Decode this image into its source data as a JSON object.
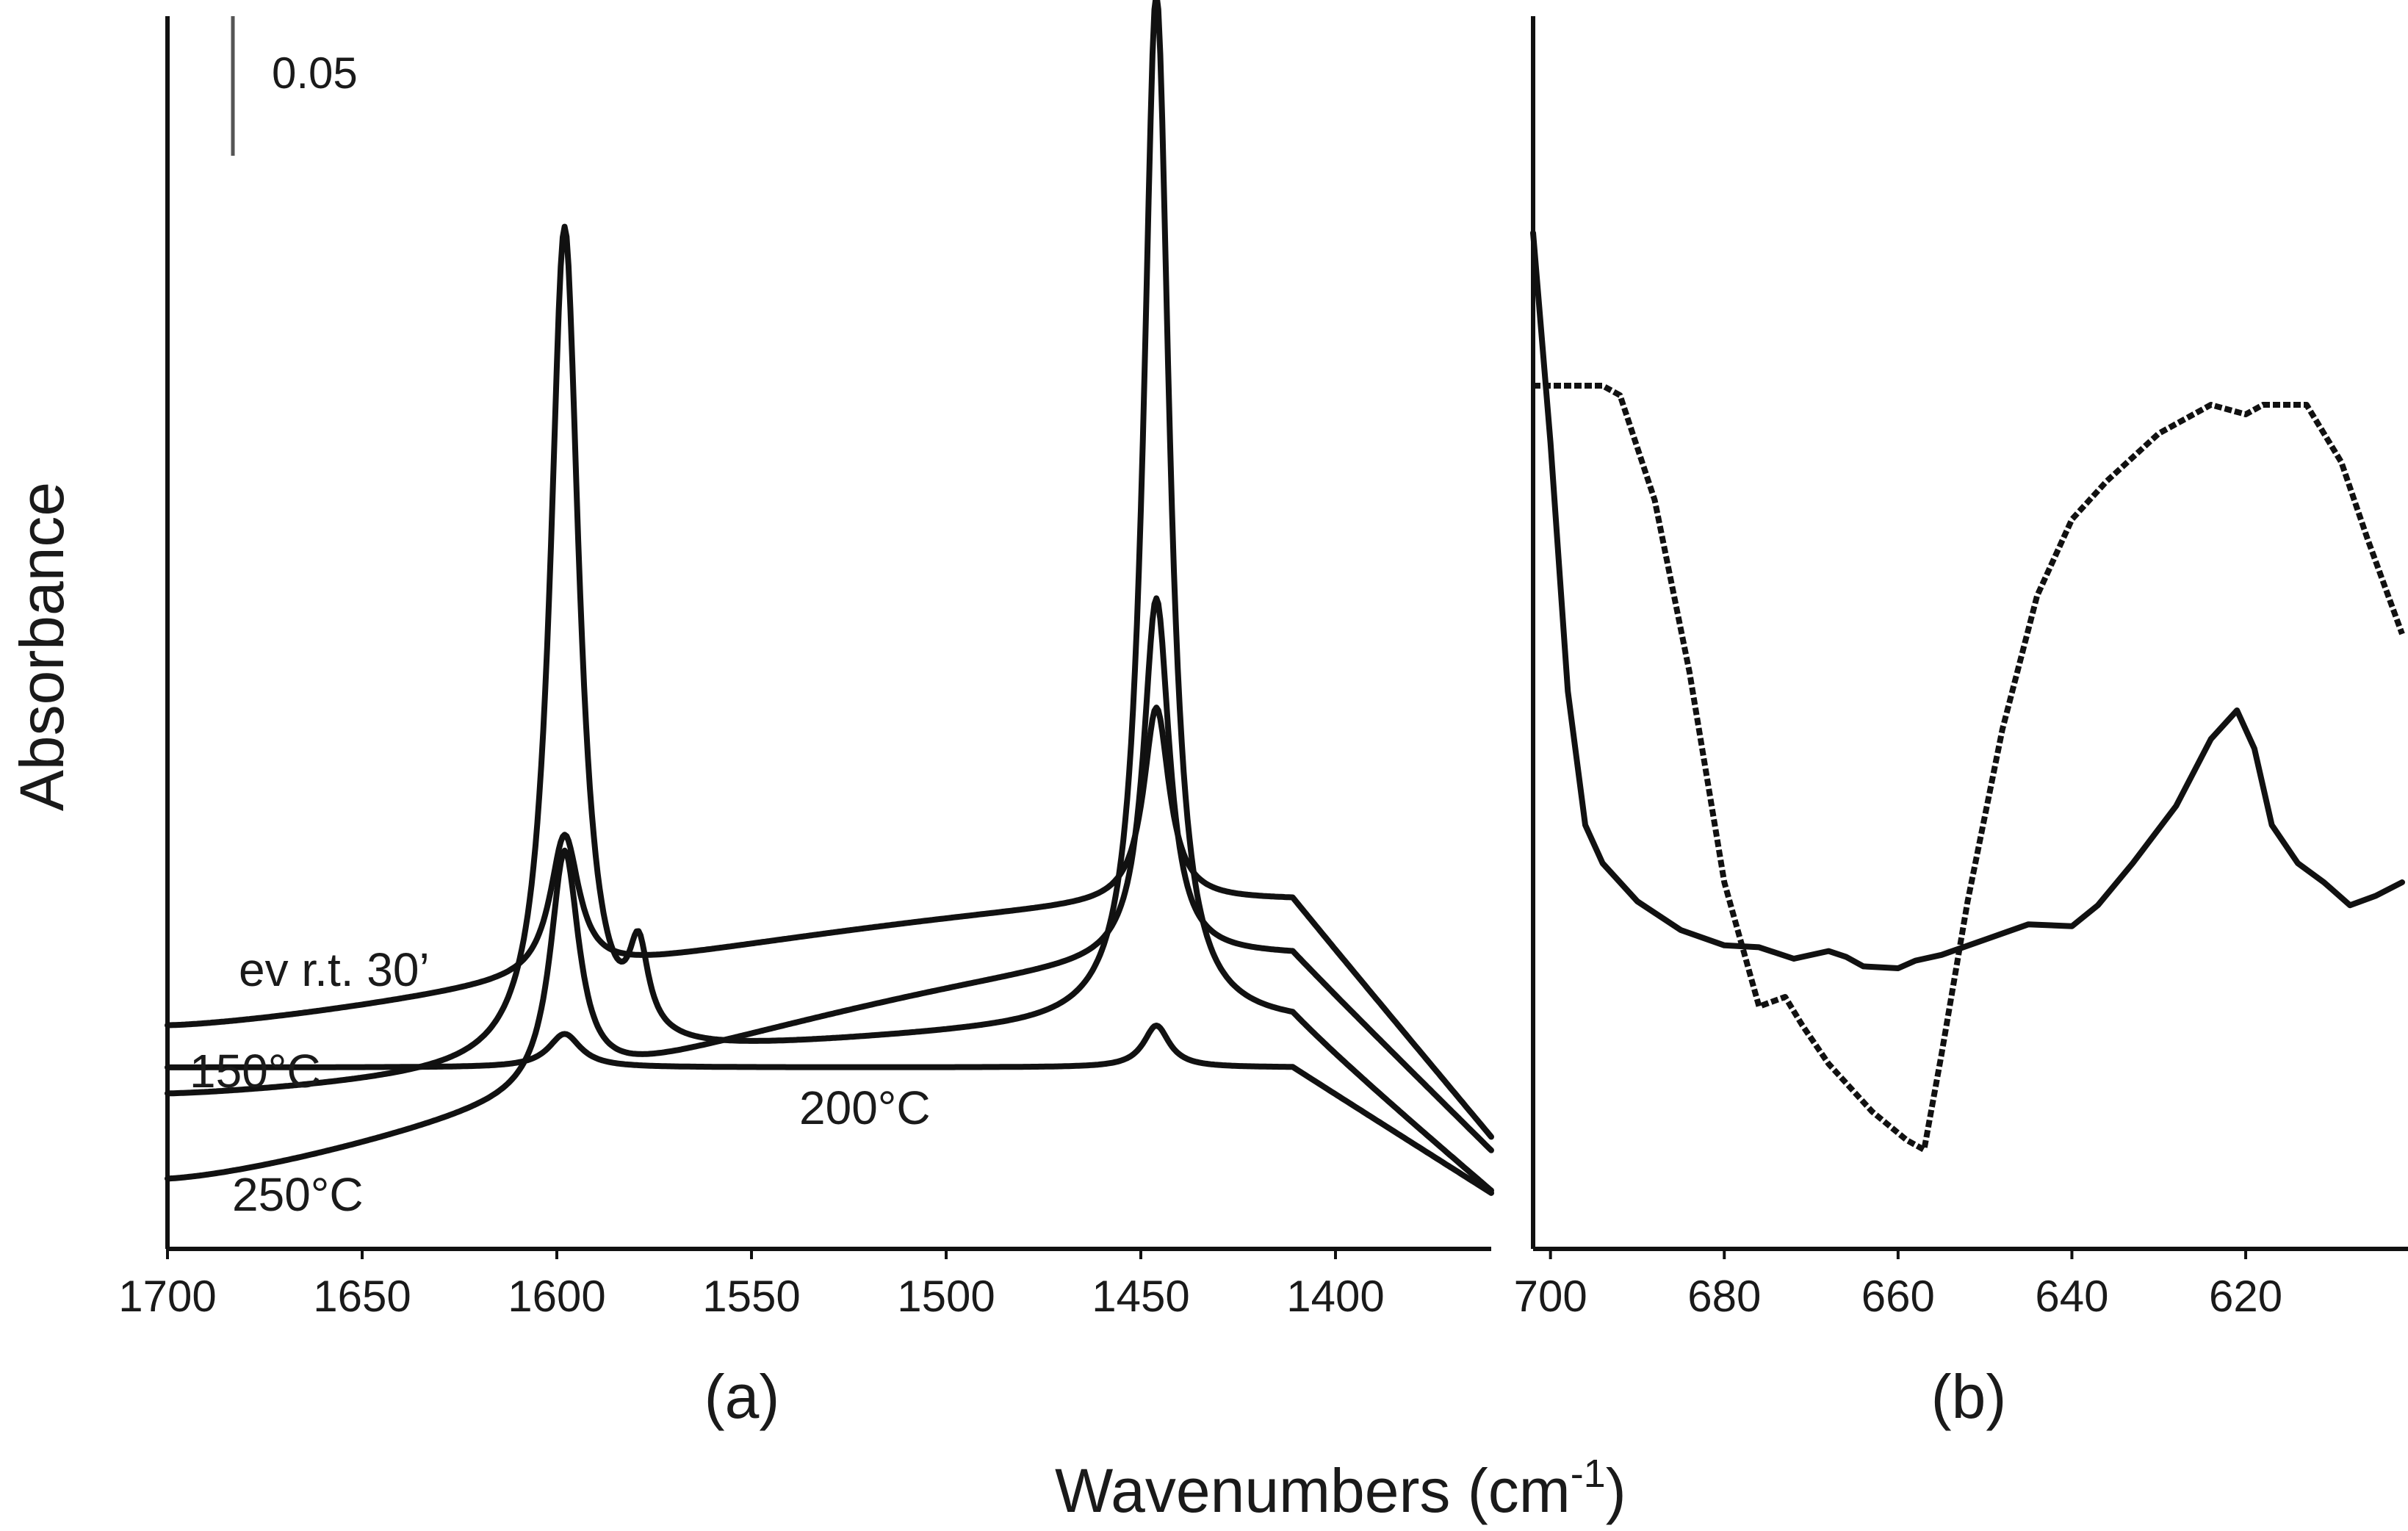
{
  "chart_data": [
    {
      "panel": "(a)",
      "type": "line",
      "xlim": [
        1700,
        1360
      ],
      "xticks": [
        1700,
        1650,
        1600,
        1550,
        1500,
        1450,
        1400
      ],
      "scale_bar": {
        "value": 0.05,
        "label": "0.05"
      },
      "series": [
        {
          "name": "ev r.t. 30'",
          "baseline": 0.03,
          "bg_rise": 0.025,
          "bg_end": 0.06,
          "peaks": [
            {
              "center": 1598,
              "height": 0.3,
              "width": 4.5
            },
            {
              "center": 1579,
              "height": 0.03,
              "width": 3
            },
            {
              "center": 1446,
              "height": 0.37,
              "width": 4
            }
          ]
        },
        {
          "name": "150°C",
          "baseline": 0.0,
          "bg_rise": 0.08,
          "bg_end": 0.07,
          "peaks": [
            {
              "center": 1598,
              "height": 0.085,
              "width": 4.5
            },
            {
              "center": 1446,
              "height": 0.13,
              "width": 4
            }
          ]
        },
        {
          "name": "200°C",
          "baseline": 0.055,
          "bg_rise": 0.045,
          "bg_end": 0.085,
          "peaks": [
            {
              "center": 1598,
              "height": 0.05,
              "width": 4.5
            },
            {
              "center": 1446,
              "height": 0.07,
              "width": 4
            }
          ]
        },
        {
          "name": "250°C",
          "baseline": 0.04,
          "bg_rise": 0.0,
          "bg_end": 0.045,
          "peaks": [
            {
              "center": 1598,
              "height": 0.012,
              "width": 5
            },
            {
              "center": 1446,
              "height": 0.015,
              "width": 4
            }
          ]
        }
      ]
    },
    {
      "panel": "(b)",
      "type": "line",
      "xlim": [
        702,
        602
      ],
      "xticks": [
        700,
        680,
        660,
        640,
        620
      ],
      "series": [
        {
          "name": "solid",
          "style": "solid",
          "x": [
            702,
            700,
            698,
            696,
            694,
            690,
            685,
            680,
            676,
            672,
            668,
            666,
            664,
            660,
            658,
            655,
            650,
            645,
            640,
            637,
            633,
            628,
            624,
            621,
            619,
            617,
            614,
            611,
            608,
            605,
            602
          ],
          "y": [
            0.48,
            0.37,
            0.24,
            0.17,
            0.15,
            0.13,
            0.115,
            0.107,
            0.106,
            0.1,
            0.104,
            0.101,
            0.096,
            0.095,
            0.099,
            0.102,
            0.11,
            0.118,
            0.117,
            0.128,
            0.15,
            0.18,
            0.215,
            0.23,
            0.21,
            0.17,
            0.15,
            0.14,
            0.128,
            0.133,
            0.14
          ]
        },
        {
          "name": "dashed",
          "style": "dashed",
          "x": [
            702,
            698,
            694,
            692,
            688,
            684,
            680,
            676,
            673,
            671,
            668,
            663,
            659,
            657,
            655,
            652,
            648,
            644,
            640,
            636,
            630,
            624,
            620,
            618,
            613,
            609,
            606,
            602
          ],
          "y": [
            0.4,
            0.4,
            0.4,
            0.395,
            0.34,
            0.25,
            0.14,
            0.075,
            0.08,
            0.065,
            0.045,
            0.02,
            0.005,
            0.0,
            0.05,
            0.13,
            0.22,
            0.29,
            0.33,
            0.35,
            0.375,
            0.39,
            0.385,
            0.39,
            0.39,
            0.36,
            0.32,
            0.27
          ]
        }
      ]
    }
  ],
  "axis_title_y": "Absorbance",
  "axis_title_x": "Wavenumbers (cm",
  "axis_title_x_exp": "-1",
  "axis_title_x_close": ")",
  "labels": {
    "ev": "ev r.t. 30’",
    "t150": "150°C",
    "t200": "200°C",
    "t250": "250°C",
    "panel_a": "(a)",
    "panel_b": "(b)"
  }
}
